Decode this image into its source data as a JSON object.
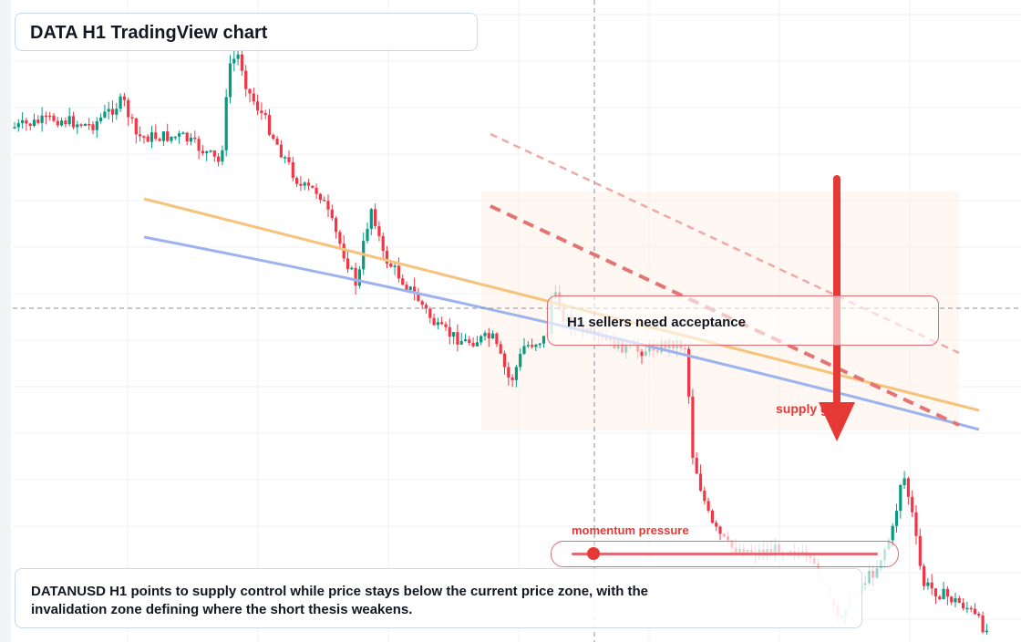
{
  "title": "DATA H1 TradingView chart",
  "annotations": {
    "acceptance_label": "H1 sellers need acceptance",
    "supply_label": "supply gate",
    "momentum_label": "momentum pressure",
    "momentum_level": 0.07
  },
  "caption": "DATANUSD H1 points to supply control while price stays below the current price zone, with the invalidation zone defining where the short thesis weakens.",
  "colors": {
    "up": "#089981",
    "down": "#f23645",
    "orange_line": "#f7c27a",
    "blue_line": "#9cb3f0",
    "supply_trend": "#e57373",
    "arrow": "#e53935"
  },
  "chart_data": {
    "type": "candlestick",
    "symbol": "DATANUSD",
    "timeframe": "H1",
    "axis_scale": "linear",
    "grid": true,
    "start_price": 0.5
  }
}
